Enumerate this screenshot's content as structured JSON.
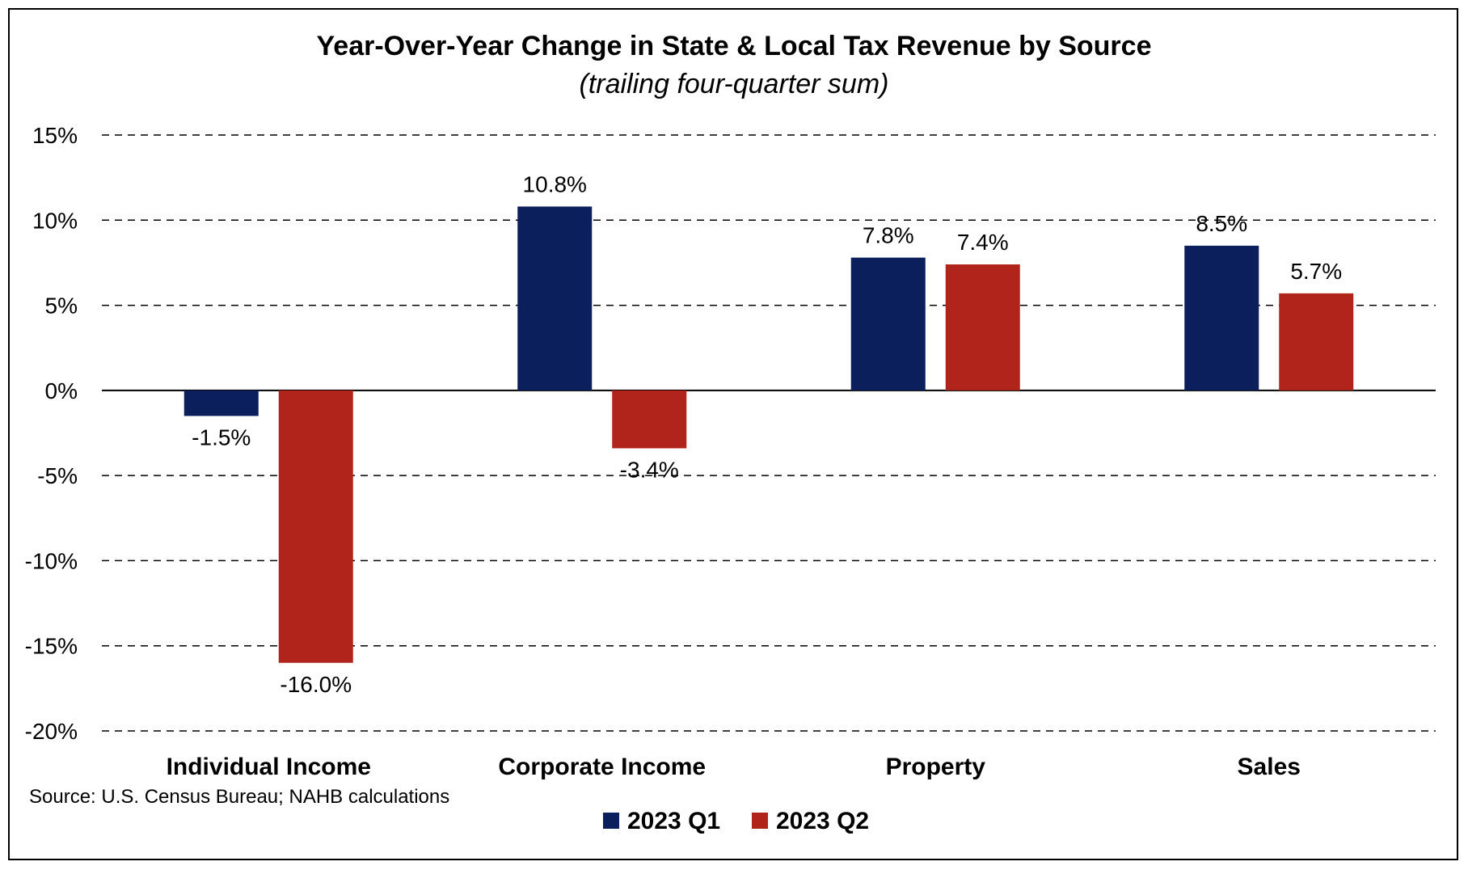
{
  "chart_data": {
    "type": "bar",
    "title": "Year-Over-Year Change in State & Local Tax Revenue by Source",
    "subtitle": "(trailing four-quarter sum)",
    "categories": [
      "Individual Income",
      "Corporate Income",
      "Property",
      "Sales"
    ],
    "series": [
      {
        "name": "2023 Q1",
        "color": "#0b1f5c",
        "values": [
          -1.5,
          10.8,
          7.8,
          8.5
        ],
        "labels": [
          "-1.5%",
          "10.8%",
          "7.8%",
          "8.5%"
        ]
      },
      {
        "name": "2023 Q2",
        "color": "#b0241b",
        "values": [
          -16.0,
          -3.4,
          7.4,
          5.7
        ],
        "labels": [
          "-16.0%",
          "-3.4%",
          "7.4%",
          "5.7%"
        ]
      }
    ],
    "yticks": [
      15,
      10,
      5,
      0,
      -5,
      -10,
      -15,
      -20
    ],
    "ytick_labels": [
      "15%",
      "10%",
      "5%",
      "0%",
      "-5%",
      "-10%",
      "-15%",
      "-20%"
    ],
    "ylim": [
      -20,
      15
    ],
    "grid": "dashed horizontal",
    "legend_position": "bottom-center",
    "source": "Source: U.S. Census Bureau; NAHB calculations"
  }
}
